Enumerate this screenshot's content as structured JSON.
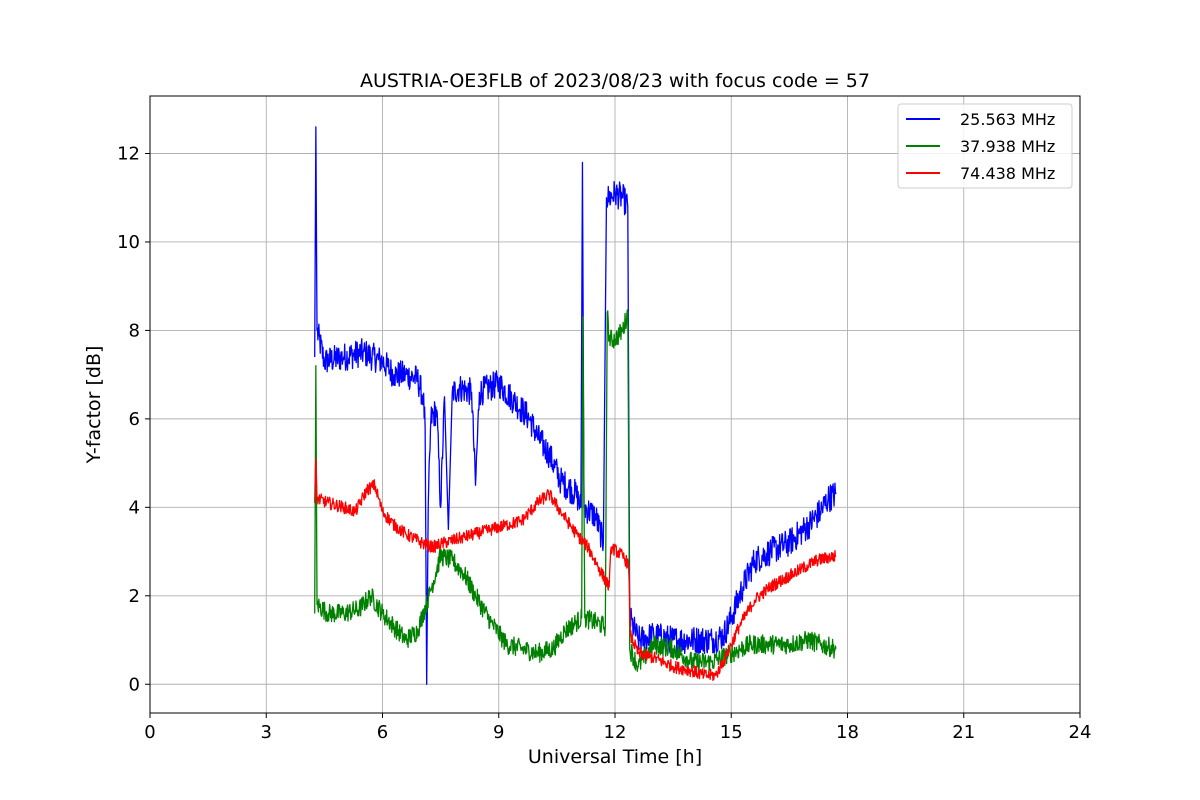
{
  "chart_data": {
    "type": "line",
    "title": "AUSTRIA-OE3FLB of 2023/08/23 with focus code = 57",
    "xlabel": "Universal Time [h]",
    "ylabel": "Y-factor [dB]",
    "xlim": [
      0,
      24
    ],
    "ylim": [
      -0.65,
      13.3
    ],
    "xticks": [
      0,
      3,
      6,
      9,
      12,
      15,
      18,
      21,
      24
    ],
    "yticks": [
      0,
      2,
      4,
      6,
      8,
      10,
      12
    ],
    "grid": true,
    "legend_position": "top-right",
    "series": [
      {
        "name": "25.563 MHz",
        "color": "#0000ff",
        "points": [
          [
            4.25,
            7.4
          ],
          [
            4.28,
            12.6
          ],
          [
            4.31,
            8.0
          ],
          [
            4.5,
            7.3
          ],
          [
            5.0,
            7.4
          ],
          [
            5.5,
            7.5
          ],
          [
            6.0,
            7.3
          ],
          [
            6.3,
            7.0
          ],
          [
            6.6,
            7.0
          ],
          [
            6.9,
            6.9
          ],
          [
            7.05,
            6.5
          ],
          [
            7.1,
            5.8
          ],
          [
            7.14,
            0.0
          ],
          [
            7.18,
            4.0
          ],
          [
            7.25,
            6.0
          ],
          [
            7.4,
            6.2
          ],
          [
            7.5,
            4.0
          ],
          [
            7.6,
            6.5
          ],
          [
            7.7,
            3.5
          ],
          [
            7.8,
            6.6
          ],
          [
            8.0,
            6.7
          ],
          [
            8.3,
            6.6
          ],
          [
            8.4,
            4.5
          ],
          [
            8.5,
            6.6
          ],
          [
            9.0,
            6.8
          ],
          [
            9.4,
            6.4
          ],
          [
            9.8,
            6.0
          ],
          [
            10.0,
            5.6
          ],
          [
            10.3,
            5.2
          ],
          [
            10.6,
            4.6
          ],
          [
            11.0,
            4.3
          ],
          [
            11.12,
            4.0
          ],
          [
            11.16,
            11.8
          ],
          [
            11.2,
            4.0
          ],
          [
            11.5,
            3.8
          ],
          [
            11.7,
            3.2
          ],
          [
            11.78,
            11.0
          ],
          [
            11.85,
            11.0
          ],
          [
            12.0,
            11.1
          ],
          [
            12.2,
            11.0
          ],
          [
            12.33,
            10.8
          ],
          [
            12.38,
            1.5
          ],
          [
            12.6,
            1.0
          ],
          [
            13.0,
            1.1
          ],
          [
            13.5,
            1.0
          ],
          [
            14.0,
            1.0
          ],
          [
            14.5,
            1.0
          ],
          [
            14.8,
            1.1
          ],
          [
            15.0,
            1.5
          ],
          [
            15.3,
            2.2
          ],
          [
            15.6,
            2.8
          ],
          [
            16.0,
            3.0
          ],
          [
            16.5,
            3.2
          ],
          [
            17.0,
            3.6
          ],
          [
            17.3,
            3.9
          ],
          [
            17.5,
            4.2
          ],
          [
            17.7,
            4.3
          ]
        ]
      },
      {
        "name": "37.938 MHz",
        "color": "#008000",
        "points": [
          [
            4.25,
            1.6
          ],
          [
            4.28,
            7.2
          ],
          [
            4.31,
            1.8
          ],
          [
            4.6,
            1.6
          ],
          [
            5.0,
            1.6
          ],
          [
            5.4,
            1.7
          ],
          [
            5.7,
            2.0
          ],
          [
            6.0,
            1.6
          ],
          [
            6.3,
            1.3
          ],
          [
            6.6,
            1.0
          ],
          [
            6.9,
            1.2
          ],
          [
            7.2,
            2.0
          ],
          [
            7.5,
            2.9
          ],
          [
            7.8,
            2.8
          ],
          [
            8.1,
            2.5
          ],
          [
            8.4,
            2.0
          ],
          [
            8.8,
            1.4
          ],
          [
            9.2,
            0.9
          ],
          [
            9.6,
            0.8
          ],
          [
            10.0,
            0.7
          ],
          [
            10.4,
            0.8
          ],
          [
            10.7,
            1.2
          ],
          [
            11.0,
            1.4
          ],
          [
            11.14,
            1.5
          ],
          [
            11.17,
            8.3
          ],
          [
            11.22,
            1.5
          ],
          [
            11.5,
            1.4
          ],
          [
            11.75,
            1.3
          ],
          [
            11.8,
            8.4
          ],
          [
            11.85,
            7.8
          ],
          [
            12.0,
            7.8
          ],
          [
            12.2,
            8.0
          ],
          [
            12.33,
            8.4
          ],
          [
            12.38,
            0.8
          ],
          [
            12.6,
            0.4
          ],
          [
            13.0,
            0.9
          ],
          [
            13.5,
            0.8
          ],
          [
            14.0,
            0.5
          ],
          [
            14.5,
            0.5
          ],
          [
            15.0,
            0.7
          ],
          [
            15.5,
            0.9
          ],
          [
            16.0,
            0.9
          ],
          [
            16.5,
            0.9
          ],
          [
            17.0,
            1.0
          ],
          [
            17.3,
            0.9
          ],
          [
            17.7,
            0.8
          ]
        ]
      },
      {
        "name": "74.438 MHz",
        "color": "#ff0000",
        "points": [
          [
            4.25,
            4.1
          ],
          [
            4.28,
            5.1
          ],
          [
            4.31,
            4.2
          ],
          [
            4.6,
            4.1
          ],
          [
            5.0,
            4.0
          ],
          [
            5.3,
            3.9
          ],
          [
            5.6,
            4.4
          ],
          [
            5.8,
            4.5
          ],
          [
            6.0,
            3.9
          ],
          [
            6.3,
            3.6
          ],
          [
            6.6,
            3.4
          ],
          [
            7.0,
            3.2
          ],
          [
            7.3,
            3.1
          ],
          [
            7.6,
            3.2
          ],
          [
            8.0,
            3.3
          ],
          [
            8.4,
            3.4
          ],
          [
            8.8,
            3.5
          ],
          [
            9.2,
            3.6
          ],
          [
            9.6,
            3.7
          ],
          [
            10.0,
            4.1
          ],
          [
            10.3,
            4.3
          ],
          [
            10.6,
            3.9
          ],
          [
            11.0,
            3.4
          ],
          [
            11.3,
            3.1
          ],
          [
            11.6,
            2.6
          ],
          [
            11.85,
            2.2
          ],
          [
            11.9,
            3.1
          ],
          [
            12.2,
            2.9
          ],
          [
            12.35,
            2.7
          ],
          [
            12.4,
            1.1
          ],
          [
            12.6,
            0.7
          ],
          [
            13.0,
            0.6
          ],
          [
            13.5,
            0.4
          ],
          [
            14.0,
            0.3
          ],
          [
            14.3,
            0.2
          ],
          [
            14.6,
            0.2
          ],
          [
            14.9,
            0.7
          ],
          [
            15.2,
            1.3
          ],
          [
            15.6,
            1.9
          ],
          [
            16.0,
            2.2
          ],
          [
            16.4,
            2.4
          ],
          [
            16.8,
            2.6
          ],
          [
            17.2,
            2.8
          ],
          [
            17.7,
            2.9
          ]
        ]
      }
    ]
  }
}
